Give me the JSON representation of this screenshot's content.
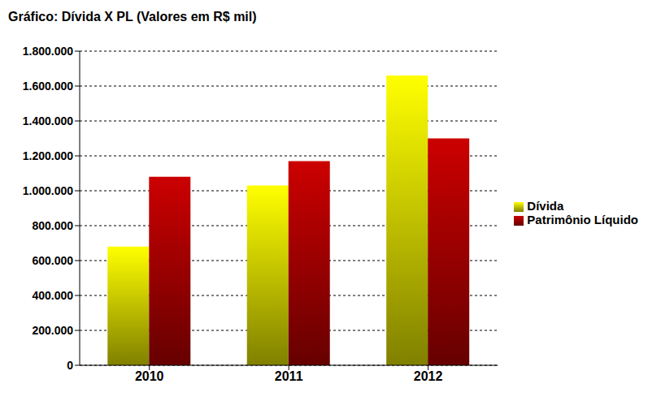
{
  "chart_data": {
    "type": "bar",
    "title": "Gráfico: Dívida X PL (Valores em R$ mil)",
    "categories": [
      "2010",
      "2011",
      "2012"
    ],
    "series": [
      {
        "name": "Dívida",
        "color": "#ffff00",
        "values": [
          680000,
          1030000,
          1660000
        ]
      },
      {
        "name": "Patrimônio Líquido",
        "color": "#cc0000",
        "values": [
          1080000,
          1170000,
          1300000
        ]
      }
    ],
    "ylim": [
      0,
      1800000
    ],
    "yticks": [
      0,
      {
        "value": 200000,
        "label": "200.000"
      },
      {
        "value": 400000,
        "label": "400.000"
      },
      {
        "value": 600000,
        "label": "600.000"
      },
      {
        "value": 800000,
        "label": "800.000"
      },
      {
        "value": 1000000,
        "label": "1.000.000"
      },
      {
        "value": 1200000,
        "label": "1.200.000"
      },
      {
        "value": 1400000,
        "label": "1.400.000"
      },
      {
        "value": 1600000,
        "label": "1.600.000"
      },
      {
        "value": 1800000,
        "label": "1.800.000"
      }
    ],
    "grid": true,
    "legend": "right"
  }
}
